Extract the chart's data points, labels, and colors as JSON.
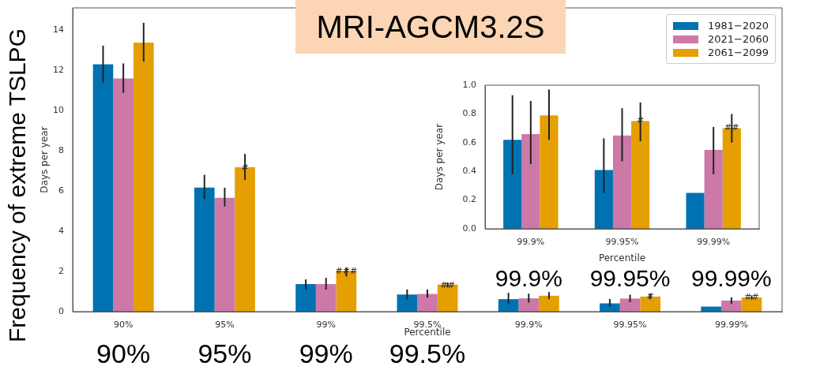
{
  "chart_data": [
    {
      "type": "bar",
      "title": "MRI-AGCM3.2S",
      "xlabel": "Percentile",
      "ylabel": "Days per year",
      "categories": [
        "90%",
        "95%",
        "99%",
        "99.5%",
        "99.9%",
        "99.95%",
        "99.99%"
      ],
      "series": [
        {
          "name": "1981−2020",
          "color": "#0072b2",
          "values": [
            12.3,
            6.17,
            1.37,
            0.85,
            0.62,
            0.41,
            0.25
          ],
          "errors": [
            [
              11.39,
              13.22
            ],
            [
              5.6,
              6.8
            ],
            [
              1.1,
              1.6
            ],
            [
              0.6,
              1.1
            ],
            [
              0.38,
              0.93
            ],
            [
              0.25,
              0.63
            ],
            null
          ]
        },
        {
          "name": "2021−2060",
          "color": "#cc79a7",
          "values": [
            11.59,
            5.66,
            1.37,
            0.88,
            0.66,
            0.65,
            0.55
          ],
          "errors": [
            [
              10.88,
              12.34
            ],
            [
              5.23,
              6.16
            ],
            [
              1.1,
              1.68
            ],
            [
              0.7,
              1.1
            ],
            [
              0.45,
              0.89
            ],
            [
              0.47,
              0.84
            ],
            [
              0.38,
              0.71
            ]
          ]
        },
        {
          "name": "2061−2099",
          "color": "#e69f00",
          "values": [
            13.37,
            7.18,
            2.03,
            1.35,
            0.79,
            0.75,
            0.7
          ],
          "errors": [
            [
              12.43,
              14.36
            ],
            [
              6.55,
              7.84
            ],
            [
              1.75,
              2.2
            ],
            [
              1.2,
              1.45
            ],
            [
              0.62,
              0.97
            ],
            [
              0.61,
              0.88
            ],
            [
              0.6,
              0.8
            ]
          ]
        }
      ],
      "ylim": [
        0,
        15.1
      ],
      "yticks": [
        0,
        2,
        4,
        6,
        8,
        10,
        12,
        14
      ],
      "legend": "top right",
      "annotations": [
        "Frequency of extreme TSLPG",
        "90%",
        "95%",
        "99%",
        "99.5%",
        "99.9%",
        "99.95%",
        "99.99%",
        "#",
        "###",
        "##",
        {
          "text": "#",
          "x": "99.95%",
          "y": 0.75
        },
        {
          "text": "##",
          "x": "99.99%",
          "y": 0.7
        }
      ]
    },
    {
      "type": "bar",
      "xlabel": "Percentile",
      "ylabel": "Days per year",
      "categories": [
        "99.9%",
        "99.95%",
        "99.99%"
      ],
      "series": [
        {
          "color": "#0072b2",
          "values": [
            0.62,
            0.41,
            0.25
          ],
          "errors": [
            [
              0.38,
              0.93
            ],
            [
              0.25,
              0.63
            ],
            null
          ]
        },
        {
          "color": "#cc79a7",
          "values": [
            0.66,
            0.65,
            0.55
          ],
          "errors": [
            [
              0.45,
              0.89
            ],
            [
              0.47,
              0.84
            ],
            [
              0.38,
              0.71
            ]
          ]
        },
        {
          "color": "#e69f00",
          "values": [
            0.79,
            0.75,
            0.7
          ],
          "errors": [
            [
              0.62,
              0.97
            ],
            [
              0.61,
              0.88
            ],
            [
              0.6,
              0.8
            ]
          ]
        }
      ],
      "ylim": [
        0,
        1.0
      ],
      "yticks": [
        {
          "value": 0,
          "label": "0.0"
        },
        {
          "value": 0.2,
          "label": "0.2"
        },
        {
          "value": 0.4,
          "label": "0.4"
        },
        {
          "value": 0.6,
          "label": "0.6"
        },
        {
          "value": 0.8,
          "label": "0.8"
        },
        {
          "value": 1.0,
          "label": "1.0"
        }
      ],
      "annotations": [
        {
          "text": "#",
          "x": "99.95%",
          "y": 0.75
        },
        {
          "text": "##",
          "x": "99.99%",
          "y": 0.7
        }
      ]
    }
  ]
}
